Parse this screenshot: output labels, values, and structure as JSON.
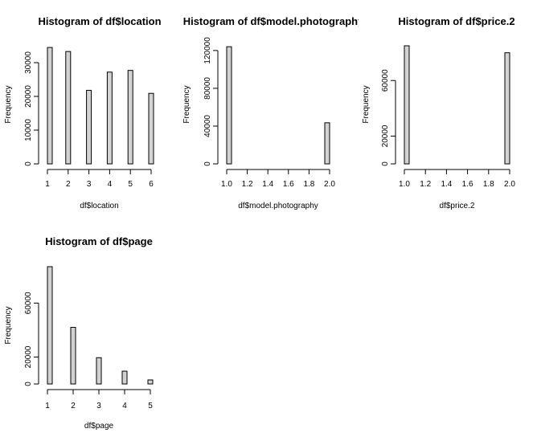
{
  "chart_data": [
    {
      "type": "bar",
      "title": "Histogram of df$location",
      "xlabel": "df$location",
      "ylabel": "Frequency",
      "x": [
        1,
        2,
        3,
        4,
        5,
        6
      ],
      "values": [
        34500,
        33300,
        21800,
        27200,
        27700,
        20900
      ],
      "xlim": [
        1,
        6
      ],
      "ylim": [
        0,
        35000
      ],
      "xticks": [
        "1",
        "2",
        "3",
        "4",
        "5",
        "6"
      ],
      "yticks": [
        "0",
        "10000",
        "20000",
        "30000"
      ]
    },
    {
      "type": "bar",
      "title": "Histogram of df$model.photography",
      "xlabel": "df$model.photography",
      "ylabel": "Frequency",
      "x": [
        1.0,
        2.0
      ],
      "values": [
        124000,
        43500
      ],
      "xlim": [
        1.0,
        2.0
      ],
      "ylim": [
        0,
        125000
      ],
      "xticks": [
        "1.0",
        "1.2",
        "1.4",
        "1.6",
        "1.8",
        "2.0"
      ],
      "yticks": [
        "0",
        "40000",
        "80000",
        "120000"
      ]
    },
    {
      "type": "bar",
      "title": "Histogram of df$price.2",
      "xlabel": "df$price.2",
      "ylabel": "Frequency",
      "x": [
        1.0,
        2.0
      ],
      "values": [
        85000,
        80000
      ],
      "xlim": [
        1.0,
        2.0
      ],
      "ylim": [
        0,
        85000
      ],
      "xticks": [
        "1.0",
        "1.2",
        "1.4",
        "1.6",
        "1.8",
        "2.0"
      ],
      "yticks": [
        "0",
        "20000",
        "60000"
      ]
    },
    {
      "type": "bar",
      "title": "Histogram of df$page",
      "xlabel": "df$page",
      "ylabel": "Frequency",
      "x": [
        1,
        2,
        3,
        4,
        5
      ],
      "values": [
        87000,
        42000,
        19500,
        9500,
        3000
      ],
      "xlim": [
        1,
        5
      ],
      "ylim": [
        0,
        87000
      ],
      "xticks": [
        "1",
        "2",
        "3",
        "4",
        "5"
      ],
      "yticks": [
        "0",
        "20000",
        "60000"
      ]
    }
  ]
}
